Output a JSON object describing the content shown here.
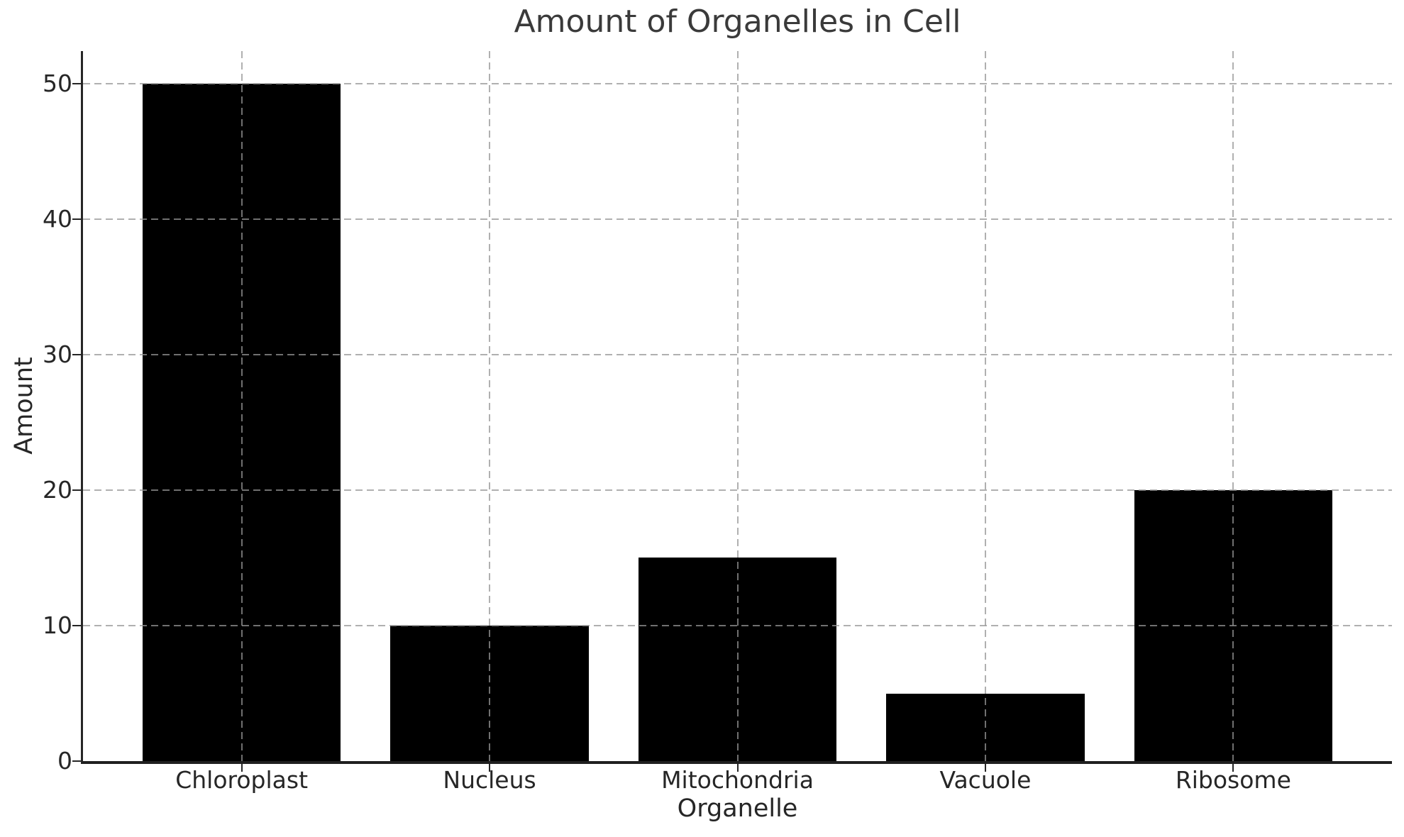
{
  "chart_data": {
    "type": "bar",
    "title": "Amount of Organelles in Cell",
    "xlabel": "Organelle",
    "ylabel": "Amount",
    "categories": [
      "Chloroplast",
      "Nucleus",
      "Mitochondria",
      "Vacuole",
      "Ribosome"
    ],
    "values": [
      50,
      10,
      15,
      5,
      20
    ],
    "yticks": [
      0,
      10,
      20,
      30,
      40,
      50
    ],
    "ylim": [
      0,
      52.4
    ],
    "bar_color": "#000000",
    "grid": {
      "visible": true,
      "style": "dashed",
      "axes": "both",
      "color": "rgba(150,150,150,0.75)",
      "above_bars": true
    },
    "legend": "none",
    "spines": [
      "left",
      "bottom"
    ],
    "text_color": "#262626",
    "title_color": "#3a3a3a",
    "background": "#ffffff"
  }
}
